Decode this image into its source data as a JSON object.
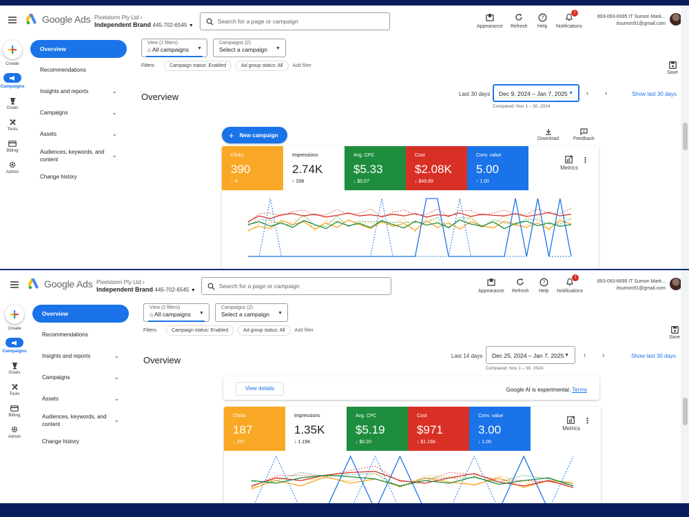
{
  "app": {
    "brand": "Google Ads",
    "org": "Pixelstorm Pty Ltd",
    "account_name": "Independent Brand",
    "customer_id": "445-702-6545",
    "search_placeholder": "Search for a page or campaign",
    "tools": [
      {
        "label": "Appearance",
        "icon": "appearance-icon"
      },
      {
        "label": "Refresh",
        "icon": "refresh-icon"
      },
      {
        "label": "Help",
        "icon": "help-icon"
      },
      {
        "label": "Notifications",
        "icon": "bell-icon",
        "badge": "!"
      }
    ],
    "user_line1": "893-093-6695 IT Sumon Mark...",
    "user_line2": "itsumon91@gmail.com"
  },
  "rail": [
    {
      "label": "Create",
      "icon": "plus-icon"
    },
    {
      "label": "Campaigns",
      "icon": "megaphone-icon",
      "active": true
    },
    {
      "label": "Goals",
      "icon": "trophy-icon"
    },
    {
      "label": "Tools",
      "icon": "tools-icon"
    },
    {
      "label": "Billing",
      "icon": "card-icon"
    },
    {
      "label": "Admin",
      "icon": "gear-icon"
    }
  ],
  "side_menu": {
    "overview": "Overview",
    "items": [
      {
        "label": "Recommendations",
        "chev": false
      },
      {
        "label": "Insights and reports",
        "chev": true
      },
      {
        "label": "Campaigns",
        "chev": true
      },
      {
        "label": "Assets",
        "chev": true
      },
      {
        "label": "Audiences, keywords, and content",
        "chev": true
      },
      {
        "label": "Change history",
        "chev": false
      }
    ]
  },
  "filters": {
    "view_label": "View (2 filters)",
    "view_value": "All campaigns",
    "camp_label": "Campaigns (2)",
    "camp_value": "Select a campaign",
    "filters_label": "Filters",
    "chip1": "Campaign status: Enabled",
    "chip2": "Ad group status: All",
    "add_filter": "Add filter",
    "save": "Save"
  },
  "overview_title": "Overview",
  "show_last": "Show last 30 days",
  "compared": "Compared: Nov 1 – 30, 2024",
  "top": {
    "lead": "Last 30 days",
    "range": "Dec 9, 2024 – Jan 7, 2025",
    "new_campaign": "New campaign",
    "download": "Download",
    "feedback": "Feedback",
    "metrics": "Metrics",
    "tiles": [
      {
        "title": "Clicks",
        "value": "390",
        "delta": "↓ 4",
        "color": "#f9a825"
      },
      {
        "title": "Impressions",
        "value": "2.74K",
        "delta": "↑ 208",
        "color": "#ffffff"
      },
      {
        "title": "Avg. CPC",
        "value": "$5.33",
        "delta": "↓ $0.07",
        "color": "#1e8e3e"
      },
      {
        "title": "Cost",
        "value": "$2.08K",
        "delta": "↓ $49.89",
        "color": "#d93025"
      },
      {
        "title": "Conv. value",
        "value": "5.00",
        "delta": "↑ 1.00",
        "color": "#1a73e8"
      }
    ]
  },
  "bottom": {
    "lead": "Last 14 days",
    "range": "Dec 25, 2024 – Jan 7, 2025",
    "view_details": "View details",
    "ai_text": "Google AI is experimental.",
    "terms": "Terms",
    "metrics": "Metrics",
    "tiles": [
      {
        "title": "Clicks",
        "value": "187",
        "delta": "↓ 207",
        "color": "#f9a825"
      },
      {
        "title": "Impressions",
        "value": "1.35K",
        "delta": "↓ 1.19K",
        "color": "#ffffff"
      },
      {
        "title": "Avg. CPC",
        "value": "$5.19",
        "delta": "↓ $0.20",
        "color": "#1e8e3e"
      },
      {
        "title": "Cost",
        "value": "$971",
        "delta": "↓ $1.16K",
        "color": "#d93025"
      },
      {
        "title": "Conv. value",
        "value": "3.00",
        "delta": "↓ 1.00",
        "color": "#1a73e8"
      }
    ]
  },
  "chart_top": {
    "type": "line",
    "series": [
      {
        "color": "#f9a825",
        "values": [
          0.45,
          0.52,
          0.48,
          0.62,
          0.55,
          0.6,
          0.47,
          0.58,
          0.5,
          0.63,
          0.55,
          0.48,
          0.6,
          0.52,
          0.57,
          0.45,
          0.62,
          0.5,
          0.58,
          0.47,
          0.6,
          0.53,
          0.49,
          0.61,
          0.55,
          0.5,
          0.58,
          0.47,
          0.62,
          0.56
        ]
      },
      {
        "color": "#d93025",
        "values": [
          0.6,
          0.7,
          0.65,
          0.72,
          0.74,
          0.7,
          0.73,
          0.68,
          0.71,
          0.75,
          0.7,
          0.72,
          0.69,
          0.73,
          0.7,
          0.74,
          0.68,
          0.72,
          0.7,
          0.75,
          0.69,
          0.73,
          0.71,
          0.7,
          0.74,
          0.69,
          0.72,
          0.76,
          0.7,
          0.73
        ]
      },
      {
        "color": "#1e8e3e",
        "values": [
          0.55,
          0.6,
          0.52,
          0.58,
          0.5,
          0.62,
          0.55,
          0.48,
          0.6,
          0.53,
          0.57,
          0.5,
          0.62,
          0.55,
          0.49,
          0.61,
          0.54,
          0.58,
          0.5,
          0.63,
          0.56,
          0.52,
          0.6,
          0.48,
          0.57,
          0.61,
          0.53,
          0.58,
          0.52,
          0.55
        ]
      },
      {
        "color": "#1a73e8",
        "values": [
          0.0,
          0.0,
          0.0,
          0.0,
          0.0,
          0.0,
          0.0,
          0.0,
          0.0,
          0.0,
          0.0,
          0.0,
          0.0,
          0.0,
          0.0,
          0.0,
          1.0,
          1.0,
          0.0,
          0.0,
          0.0,
          0.0,
          0.0,
          0.0,
          1.0,
          0.0,
          1.0,
          0.0,
          1.0,
          0.0
        ]
      },
      {
        "color": "#1a73e8",
        "dashed": true,
        "values": [
          0.0,
          0.0,
          1.0,
          0.0,
          0.0,
          0.0,
          0.0,
          0.0,
          0.0,
          0.0,
          0.0,
          0.0,
          1.0,
          0.0,
          0.0,
          0.0,
          0.0,
          0.0,
          0.0,
          1.0,
          0.0,
          0.0,
          0.0,
          0.0,
          0.0,
          0.0,
          1.0,
          0.0,
          0.0,
          0.0
        ]
      }
    ]
  },
  "chart_bottom": {
    "type": "line",
    "series": [
      {
        "color": "#f9a825",
        "values": [
          0.4,
          0.55,
          0.45,
          0.62,
          0.5,
          0.58,
          0.44,
          0.6,
          0.52,
          0.47,
          0.6,
          0.42,
          0.55,
          0.5
        ]
      },
      {
        "color": "#d93025",
        "values": [
          0.45,
          0.6,
          0.55,
          0.65,
          0.7,
          0.72,
          0.55,
          0.5,
          0.6,
          0.68,
          0.52,
          0.45,
          0.55,
          0.42
        ]
      },
      {
        "color": "#1e8e3e",
        "values": [
          0.55,
          0.5,
          0.6,
          0.65,
          0.62,
          0.58,
          0.45,
          0.55,
          0.5,
          0.62,
          0.48,
          0.55,
          0.6,
          0.45
        ]
      },
      {
        "color": "#1a73e8",
        "values": [
          0.0,
          0.0,
          0.0,
          0.0,
          1.0,
          0.0,
          1.0,
          0.0,
          0.0,
          0.0,
          0.0,
          1.0,
          0.0,
          0.0
        ]
      },
      {
        "color": "#1a73e8",
        "dashed": true,
        "values": [
          0.0,
          1.0,
          0.0,
          0.0,
          0.0,
          1.0,
          0.0,
          0.0,
          0.0,
          1.0,
          0.0,
          0.0,
          0.0,
          1.0
        ]
      }
    ]
  }
}
